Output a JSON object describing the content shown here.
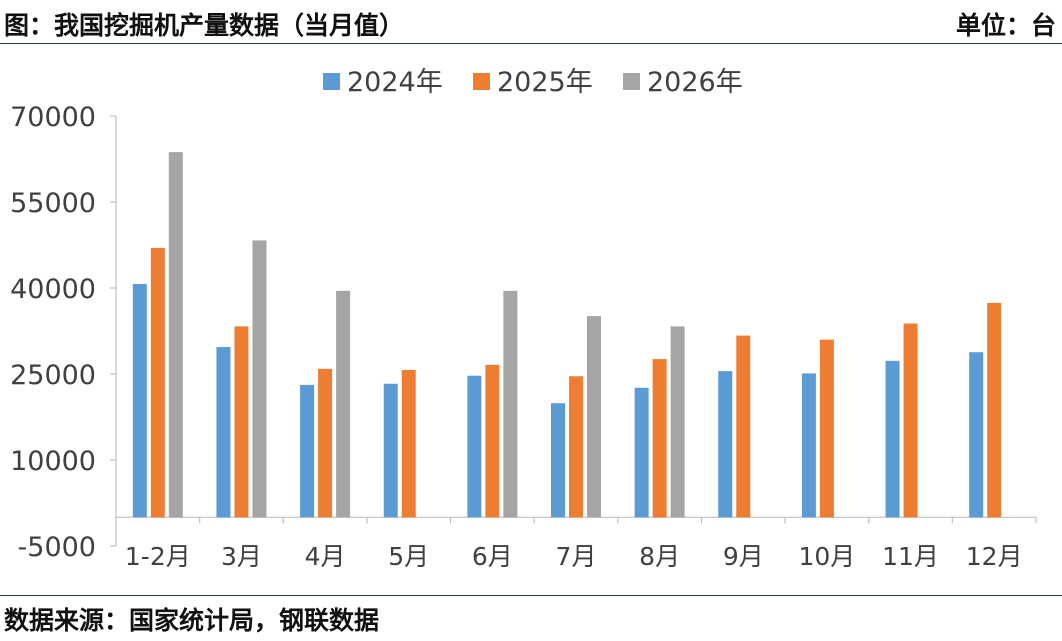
{
  "header": {
    "title": "图：我国挖掘机产量数据（当月值）",
    "unit": "单位：台"
  },
  "footer": {
    "source": "数据来源：国家统计局，钢联数据"
  },
  "chart_data": {
    "type": "bar",
    "title": "",
    "xlabel": "",
    "ylabel": "",
    "ylim": [
      -5000,
      70000
    ],
    "yticks": [
      -5000,
      10000,
      25000,
      40000,
      55000,
      70000
    ],
    "grid": false,
    "legend_position": "top",
    "categories": [
      "1-2月",
      "3月",
      "4月",
      "5月",
      "6月",
      "7月",
      "8月",
      "9月",
      "10月",
      "11月",
      "12月"
    ],
    "series": [
      {
        "name": "2024年",
        "color": "#5B9BD5",
        "values": [
          40700,
          29700,
          23100,
          23300,
          24700,
          19900,
          22600,
          25500,
          25100,
          27300,
          28800
        ]
      },
      {
        "name": "2025年",
        "color": "#ED7D31",
        "values": [
          47000,
          33300,
          25900,
          25700,
          26600,
          24600,
          27600,
          31700,
          31000,
          33800,
          37400
        ]
      },
      {
        "name": "2026年",
        "color": "#A5A5A5",
        "values": [
          63700,
          48300,
          39500,
          null,
          39500,
          35100,
          33300,
          null,
          null,
          null,
          null
        ]
      }
    ]
  }
}
